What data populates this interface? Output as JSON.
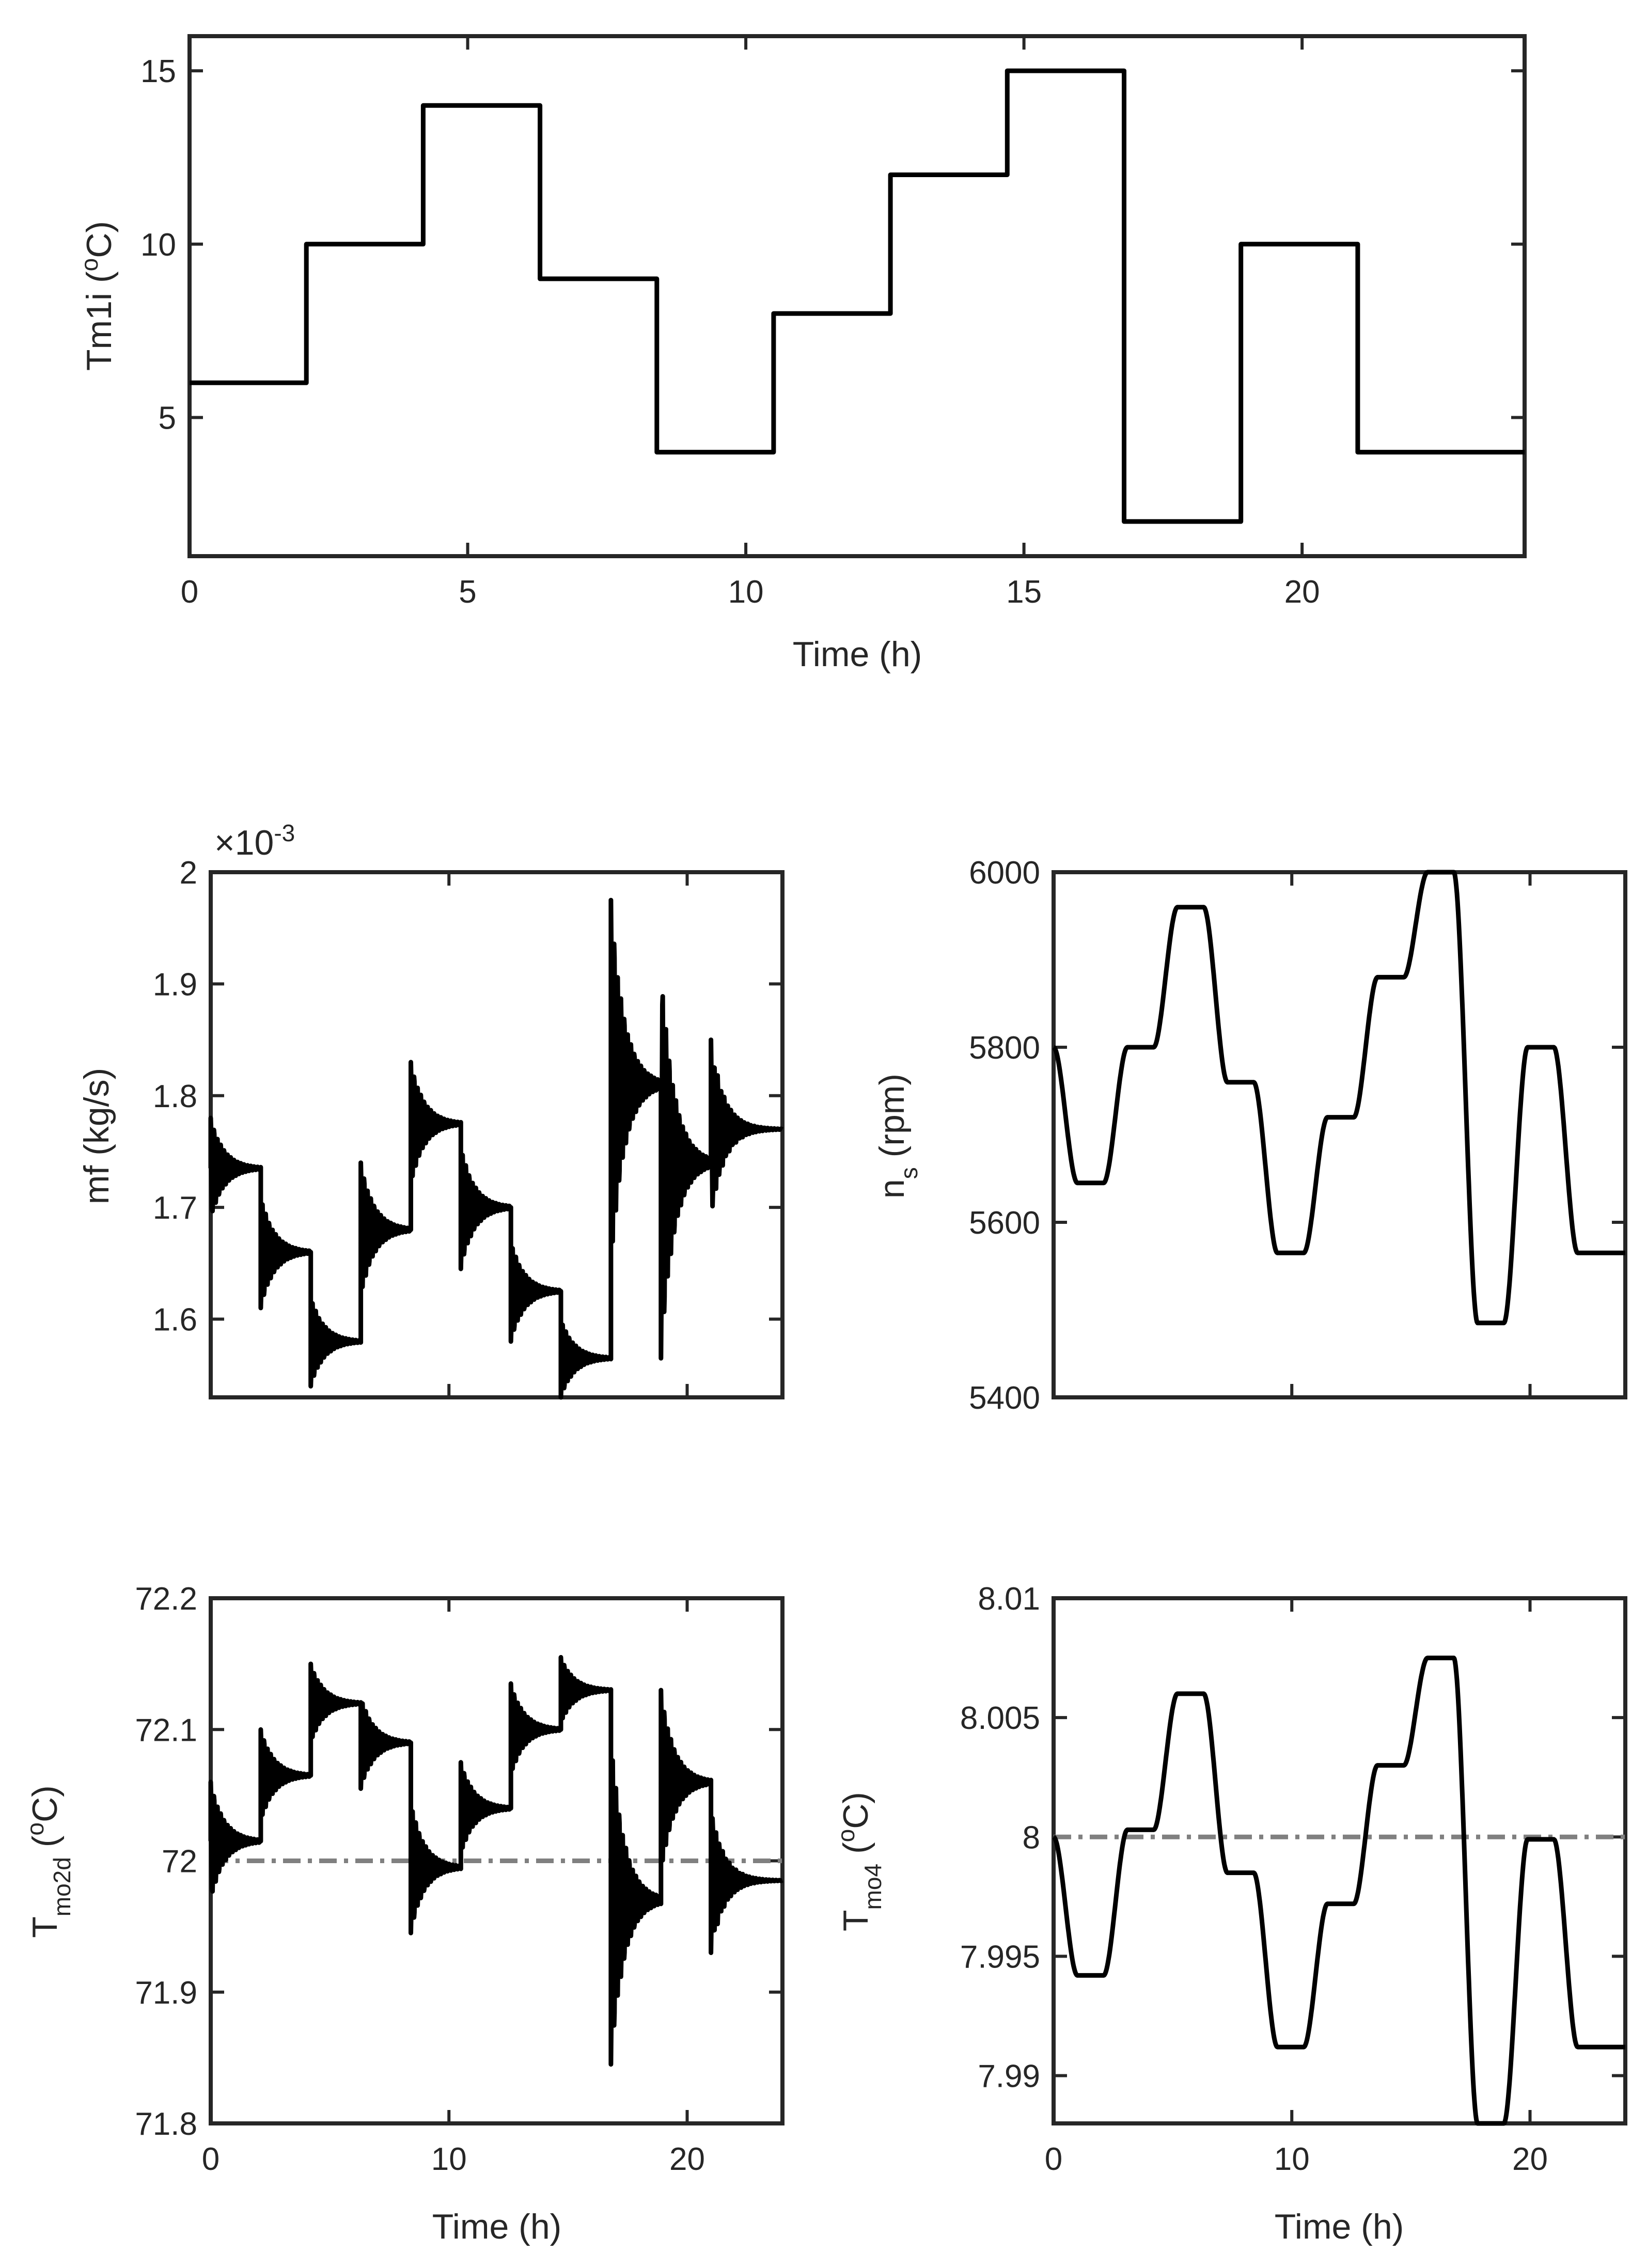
{
  "colors": {
    "series": "#000000",
    "reference": "#808080",
    "axes": "#262626"
  },
  "chart_data": [
    {
      "id": "tm1i",
      "type": "line",
      "title": "",
      "xlabel": "Time (h)",
      "ylabel": "Tm1i (oC)",
      "ylabel_main": "Tm1i (",
      "ylabel_sup": "o",
      "ylabel_tail": "C)",
      "xlim": [
        0,
        24
      ],
      "ylim": [
        1,
        16
      ],
      "xticks": [
        0,
        5,
        10,
        15,
        20
      ],
      "yticks": [
        5,
        10,
        15
      ],
      "xtick_labels": [
        "0",
        "5",
        "10",
        "15",
        "20"
      ],
      "ytick_labels": [
        "5",
        "10",
        "15"
      ],
      "series": [
        {
          "name": "Tm1i",
          "style": "step",
          "x": [
            0,
            2.1,
            4.2,
            6.3,
            8.4,
            10.5,
            12.6,
            14.7,
            16.8,
            18.9,
            21,
            24
          ],
          "y": [
            6,
            10,
            14,
            9,
            4,
            8,
            12,
            15,
            2,
            10,
            4,
            4
          ]
        }
      ]
    },
    {
      "id": "mf",
      "type": "line",
      "xlabel": "",
      "ylabel": "mf (kg/s)",
      "exponent_label": "×10",
      "exponent_power": "-3",
      "xlim": [
        0,
        24
      ],
      "ylim": [
        1.53,
        2.0
      ],
      "yticks": [
        1.6,
        1.7,
        1.8,
        1.9,
        2.0
      ],
      "ytick_labels": [
        "1.6",
        "1.7",
        "1.8",
        "1.9",
        "2"
      ],
      "series": [
        {
          "name": "mf",
          "style": "step_oscillating",
          "segments": [
            {
              "t0": 0,
              "level": 1.735,
              "spike": 1.78
            },
            {
              "t0": 2.1,
              "level": 1.66,
              "spike": 1.61
            },
            {
              "t0": 4.2,
              "level": 1.58,
              "spike": 1.54
            },
            {
              "t0": 6.3,
              "level": 1.68,
              "spike": 1.74
            },
            {
              "t0": 8.4,
              "level": 1.775,
              "spike": 1.83
            },
            {
              "t0": 10.5,
              "level": 1.7,
              "spike": 1.645
            },
            {
              "t0": 12.6,
              "level": 1.625,
              "spike": 1.58
            },
            {
              "t0": 14.7,
              "level": 1.565,
              "spike": 1.53
            },
            {
              "t0": 16.8,
              "level": 1.81,
              "spike": 1.975
            },
            {
              "t0": 18.9,
              "level": 1.74,
              "spike": 1.565
            },
            {
              "t0": 21,
              "level": 1.77,
              "spike": 1.85
            }
          ],
          "end": 24
        }
      ]
    },
    {
      "id": "ns",
      "type": "line",
      "xlabel": "",
      "ylabel": "ns (rpm)",
      "ylabel_main": "n",
      "ylabel_sub": "s",
      "ylabel_tail": " (rpm)",
      "xlim": [
        0,
        24
      ],
      "ylim": [
        5400,
        6000
      ],
      "yticks": [
        5400,
        5600,
        5800,
        6000
      ],
      "ytick_labels": [
        "5400",
        "5600",
        "5800",
        "6000"
      ],
      "series": [
        {
          "name": "ns",
          "style": "smooth_step",
          "start": 5800,
          "segments": [
            {
              "t0": 0,
              "level": 5645
            },
            {
              "t0": 2.1,
              "level": 5800
            },
            {
              "t0": 4.2,
              "level": 5960
            },
            {
              "t0": 6.3,
              "level": 5760
            },
            {
              "t0": 8.4,
              "level": 5565
            },
            {
              "t0": 10.5,
              "level": 5720
            },
            {
              "t0": 12.6,
              "level": 5880
            },
            {
              "t0": 14.7,
              "level": 6000
            },
            {
              "t0": 16.8,
              "level": 5485
            },
            {
              "t0": 18.9,
              "level": 5800
            },
            {
              "t0": 21,
              "level": 5565
            }
          ],
          "end": 24
        }
      ]
    },
    {
      "id": "tmo2d",
      "type": "line",
      "xlabel": "Time (h)",
      "ylabel": "Tmo2d (oC)",
      "ylabel_main": "T",
      "ylabel_sub": "mo2d",
      "ylabel_mid": " (",
      "ylabel_sup": "o",
      "ylabel_tail": "C)",
      "xlim": [
        0,
        24
      ],
      "ylim": [
        71.8,
        72.2
      ],
      "xticks": [
        0,
        10,
        20
      ],
      "yticks": [
        71.8,
        71.9,
        72.0,
        72.1,
        72.2
      ],
      "xtick_labels": [
        "0",
        "10",
        "20"
      ],
      "ytick_labels": [
        "71.8",
        "71.9",
        "72",
        "72.1",
        "72.2"
      ],
      "reference": 72.0,
      "series": [
        {
          "name": "Tmo2d",
          "style": "step_oscillating",
          "segments": [
            {
              "t0": 0,
              "level": 72.015,
              "spike": 72.06
            },
            {
              "t0": 2.1,
              "level": 72.065,
              "spike": 72.1
            },
            {
              "t0": 4.2,
              "level": 72.12,
              "spike": 72.15
            },
            {
              "t0": 6.3,
              "level": 72.09,
              "spike": 72.055
            },
            {
              "t0": 8.4,
              "level": 71.995,
              "spike": 71.945
            },
            {
              "t0": 10.5,
              "level": 72.04,
              "spike": 72.075
            },
            {
              "t0": 12.6,
              "level": 72.1,
              "spike": 72.135
            },
            {
              "t0": 14.7,
              "level": 72.13,
              "spike": 72.155
            },
            {
              "t0": 16.8,
              "level": 71.97,
              "spike": 71.845
            },
            {
              "t0": 18.9,
              "level": 72.06,
              "spike": 72.13
            },
            {
              "t0": 21,
              "level": 71.985,
              "spike": 71.93
            }
          ],
          "end": 24
        }
      ]
    },
    {
      "id": "tmo4",
      "type": "line",
      "xlabel": "Time (h)",
      "ylabel": "Tmo4 (oC)",
      "ylabel_main": "T",
      "ylabel_sub": "mo4",
      "ylabel_mid": " (",
      "ylabel_sup": "o",
      "ylabel_tail": "C)",
      "xlim": [
        0,
        24
      ],
      "ylim": [
        7.988,
        8.01
      ],
      "xticks": [
        0,
        10,
        20
      ],
      "yticks": [
        7.99,
        7.995,
        8.0,
        8.005,
        8.01
      ],
      "xtick_labels": [
        "0",
        "10",
        "20"
      ],
      "ytick_labels": [
        "7.99",
        "7.995",
        "8",
        "8.005",
        "8.01"
      ],
      "reference": 8.0,
      "series": [
        {
          "name": "Tmo4",
          "style": "smooth_step",
          "start": 8.0,
          "segments": [
            {
              "t0": 0,
              "level": 7.9942
            },
            {
              "t0": 2.1,
              "level": 8.0003
            },
            {
              "t0": 4.2,
              "level": 8.006
            },
            {
              "t0": 6.3,
              "level": 7.9985
            },
            {
              "t0": 8.4,
              "level": 7.9912
            },
            {
              "t0": 10.5,
              "level": 7.9972
            },
            {
              "t0": 12.6,
              "level": 8.003
            },
            {
              "t0": 14.7,
              "level": 8.0075
            },
            {
              "t0": 16.8,
              "level": 7.988
            },
            {
              "t0": 18.9,
              "level": 7.9999
            },
            {
              "t0": 21,
              "level": 7.9912
            }
          ],
          "end": 24
        }
      ]
    }
  ]
}
